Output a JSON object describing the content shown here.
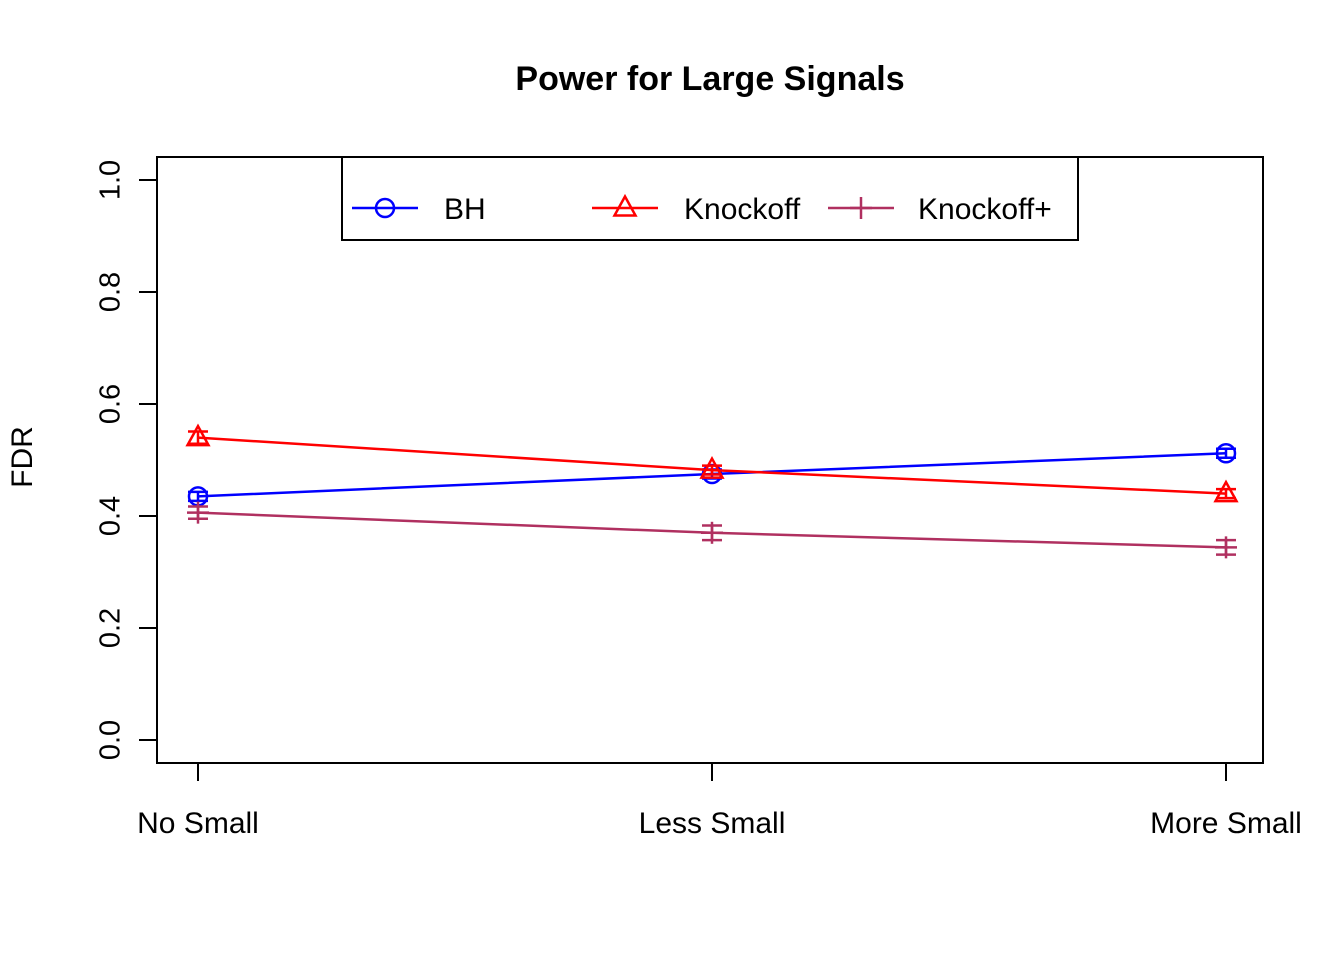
{
  "chart_data": {
    "type": "line",
    "title": "Power for Large Signals",
    "xlabel": "",
    "ylabel": "FDR",
    "categories": [
      "No Small",
      "Less Small",
      "More Small"
    ],
    "y_ticks": [
      "0.0",
      "0.2",
      "0.4",
      "0.6",
      "0.8",
      "1.0"
    ],
    "ylim": [
      0.0,
      1.0
    ],
    "grid": false,
    "legend_position": "top-center-inside",
    "series": [
      {
        "name": "BH",
        "color": "#0000FF",
        "marker": "circle",
        "values": [
          0.435,
          0.475,
          0.512
        ],
        "errors": [
          0.008,
          0.008,
          0.008
        ]
      },
      {
        "name": "Knockoff",
        "color": "#FF0000",
        "marker": "triangle",
        "values": [
          0.54,
          0.482,
          0.44
        ],
        "errors": [
          0.011,
          0.008,
          0.008
        ]
      },
      {
        "name": "Knockoff+",
        "color": "#B03060",
        "marker": "plus",
        "values": [
          0.406,
          0.37,
          0.344
        ],
        "errors": [
          0.011,
          0.013,
          0.013
        ]
      }
    ]
  },
  "colors": {
    "axis": "#000000",
    "background": "#FFFFFF"
  }
}
